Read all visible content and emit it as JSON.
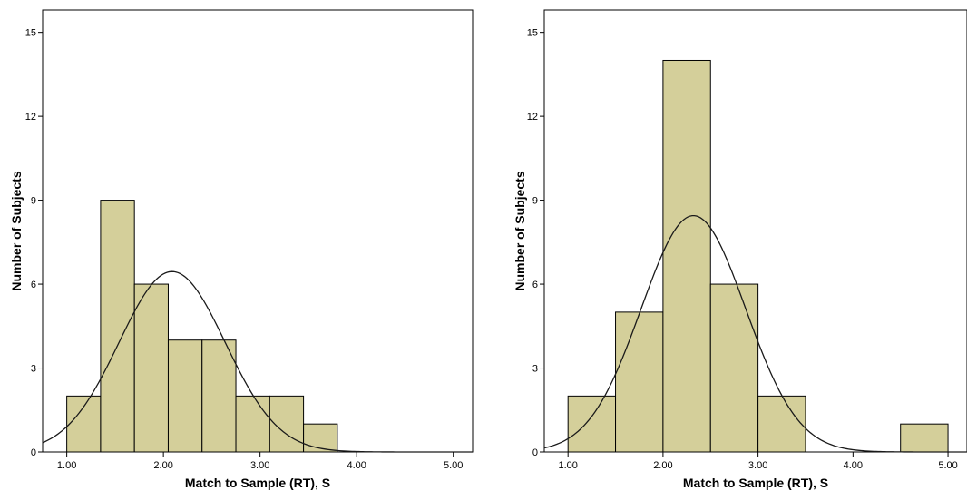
{
  "chart_data": [
    {
      "type": "bar",
      "subtype": "histogram",
      "xlabel": "Match to Sample (RT), S",
      "ylabel": "Number of Subjects",
      "xlim": [
        0.75,
        5.2
      ],
      "ylim": [
        0,
        15.8
      ],
      "xticks": [
        1.0,
        2.0,
        3.0,
        4.0,
        5.0
      ],
      "xtick_labels": [
        "1.00",
        "2.00",
        "3.00",
        "4.00",
        "5.00"
      ],
      "yticks": [
        0,
        3,
        6,
        9,
        12,
        15
      ],
      "ytick_labels": [
        "0",
        "3",
        "6",
        "9",
        "12",
        "15"
      ],
      "bins": [
        {
          "start": 1.0,
          "end": 1.35,
          "count": 2
        },
        {
          "start": 1.35,
          "end": 1.7,
          "count": 9
        },
        {
          "start": 1.7,
          "end": 2.05,
          "count": 6
        },
        {
          "start": 2.05,
          "end": 2.4,
          "count": 4
        },
        {
          "start": 2.4,
          "end": 2.75,
          "count": 4
        },
        {
          "start": 2.75,
          "end": 3.1,
          "count": 2
        },
        {
          "start": 3.1,
          "end": 3.45,
          "count": 2
        },
        {
          "start": 3.45,
          "end": 3.8,
          "count": 1
        }
      ],
      "normal_curve": {
        "mean": 2.09,
        "peak": 6.45,
        "sd": 0.55
      },
      "bar_color": "#d4cf9a",
      "grid": false
    },
    {
      "type": "bar",
      "subtype": "histogram",
      "xlabel": "Match to Sample (RT), S",
      "ylabel": "Number of Subjects",
      "xlim": [
        0.75,
        5.2
      ],
      "ylim": [
        0,
        15.8
      ],
      "xticks": [
        1.0,
        2.0,
        3.0,
        4.0,
        5.0
      ],
      "xtick_labels": [
        "1.00",
        "2.00",
        "3.00",
        "4.00",
        "5.00"
      ],
      "yticks": [
        0,
        3,
        6,
        9,
        12,
        15
      ],
      "ytick_labels": [
        "0",
        "3",
        "6",
        "9",
        "12",
        "15"
      ],
      "bins": [
        {
          "start": 1.0,
          "end": 1.5,
          "count": 2
        },
        {
          "start": 1.5,
          "end": 2.0,
          "count": 5
        },
        {
          "start": 2.0,
          "end": 2.5,
          "count": 14
        },
        {
          "start": 2.5,
          "end": 3.0,
          "count": 6
        },
        {
          "start": 3.0,
          "end": 3.5,
          "count": 2
        },
        {
          "start": 4.5,
          "end": 5.0,
          "count": 1
        }
      ],
      "normal_curve": {
        "mean": 2.32,
        "peak": 8.45,
        "sd": 0.55
      },
      "bar_color": "#d4cf9a",
      "grid": false
    }
  ]
}
